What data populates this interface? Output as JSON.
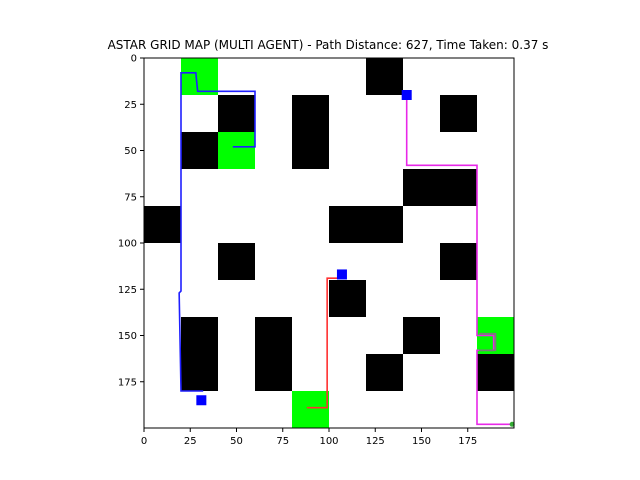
{
  "chart_data": {
    "type": "grid_map",
    "title": "ASTAR GRID MAP (MULTI AGENT) - Path Distance: 627, Time Taken: 0.37 s",
    "xlabel": "",
    "ylabel": "",
    "xlim": [
      0,
      200
    ],
    "ylim": [
      200,
      0
    ],
    "y_axis_inverted": true,
    "x_ticks": [
      0,
      25,
      50,
      75,
      100,
      125,
      150,
      175
    ],
    "y_ticks": [
      0,
      25,
      50,
      75,
      100,
      125,
      150,
      175
    ],
    "grid": false,
    "colors": {
      "obstacle": "#000000",
      "goal_region": "#00ff00",
      "agent_marker": "#0000ff",
      "background": "#ffffff"
    },
    "obstacles": [
      {
        "x": [
          120,
          140
        ],
        "y": [
          0,
          20
        ]
      },
      {
        "x": [
          40,
          60
        ],
        "y": [
          20,
          40
        ]
      },
      {
        "x": [
          80,
          100
        ],
        "y": [
          20,
          60
        ]
      },
      {
        "x": [
          160,
          180
        ],
        "y": [
          20,
          40
        ]
      },
      {
        "x": [
          20,
          40
        ],
        "y": [
          40,
          60
        ]
      },
      {
        "x": [
          140,
          180
        ],
        "y": [
          60,
          80
        ]
      },
      {
        "x": [
          0,
          20
        ],
        "y": [
          80,
          100
        ]
      },
      {
        "x": [
          100,
          140
        ],
        "y": [
          80,
          100
        ]
      },
      {
        "x": [
          40,
          60
        ],
        "y": [
          100,
          120
        ]
      },
      {
        "x": [
          160,
          180
        ],
        "y": [
          100,
          120
        ]
      },
      {
        "x": [
          100,
          120
        ],
        "y": [
          120,
          140
        ]
      },
      {
        "x": [
          20,
          40
        ],
        "y": [
          140,
          180
        ]
      },
      {
        "x": [
          60,
          80
        ],
        "y": [
          140,
          180
        ]
      },
      {
        "x": [
          140,
          160
        ],
        "y": [
          140,
          160
        ]
      },
      {
        "x": [
          120,
          140
        ],
        "y": [
          160,
          180
        ]
      },
      {
        "x": [
          180,
          200
        ],
        "y": [
          160,
          180
        ]
      }
    ],
    "goal_regions": [
      {
        "x": [
          20,
          40
        ],
        "y": [
          0,
          20
        ]
      },
      {
        "x": [
          40,
          60
        ],
        "y": [
          40,
          60
        ]
      },
      {
        "x": [
          180,
          200
        ],
        "y": [
          140,
          160
        ]
      },
      {
        "x": [
          80,
          100
        ],
        "y": [
          180,
          200
        ]
      }
    ],
    "agent_markers": [
      {
        "x": 142,
        "y": 20
      },
      {
        "x": 107,
        "y": 117
      },
      {
        "x": 31,
        "y": 185
      }
    ],
    "series": [
      {
        "color": "#1f1fff",
        "points": [
          [
            32,
            180
          ],
          [
            20,
            180
          ],
          [
            19,
            127
          ],
          [
            20,
            126
          ],
          [
            20,
            8
          ],
          [
            28,
            8
          ],
          [
            29,
            18
          ],
          [
            60,
            18
          ],
          [
            60,
            48
          ],
          [
            48,
            48
          ]
        ]
      },
      {
        "color": "#ff3030",
        "points": [
          [
            88,
            189
          ],
          [
            99,
            189
          ],
          [
            99,
            119
          ],
          [
            107,
            119
          ]
        ]
      },
      {
        "color": "#e828e8",
        "points": [
          [
            142,
            20
          ],
          [
            142,
            58
          ],
          [
            180,
            58
          ],
          [
            180,
            150
          ],
          [
            189,
            150
          ],
          [
            189,
            158
          ],
          [
            180,
            158
          ],
          [
            180,
            198
          ],
          [
            199,
            198
          ]
        ]
      },
      {
        "color": "#7a7a7a",
        "points": [
          [
            181,
            149
          ],
          [
            190,
            149
          ],
          [
            190,
            158
          ],
          [
            181,
            158
          ]
        ]
      }
    ]
  }
}
